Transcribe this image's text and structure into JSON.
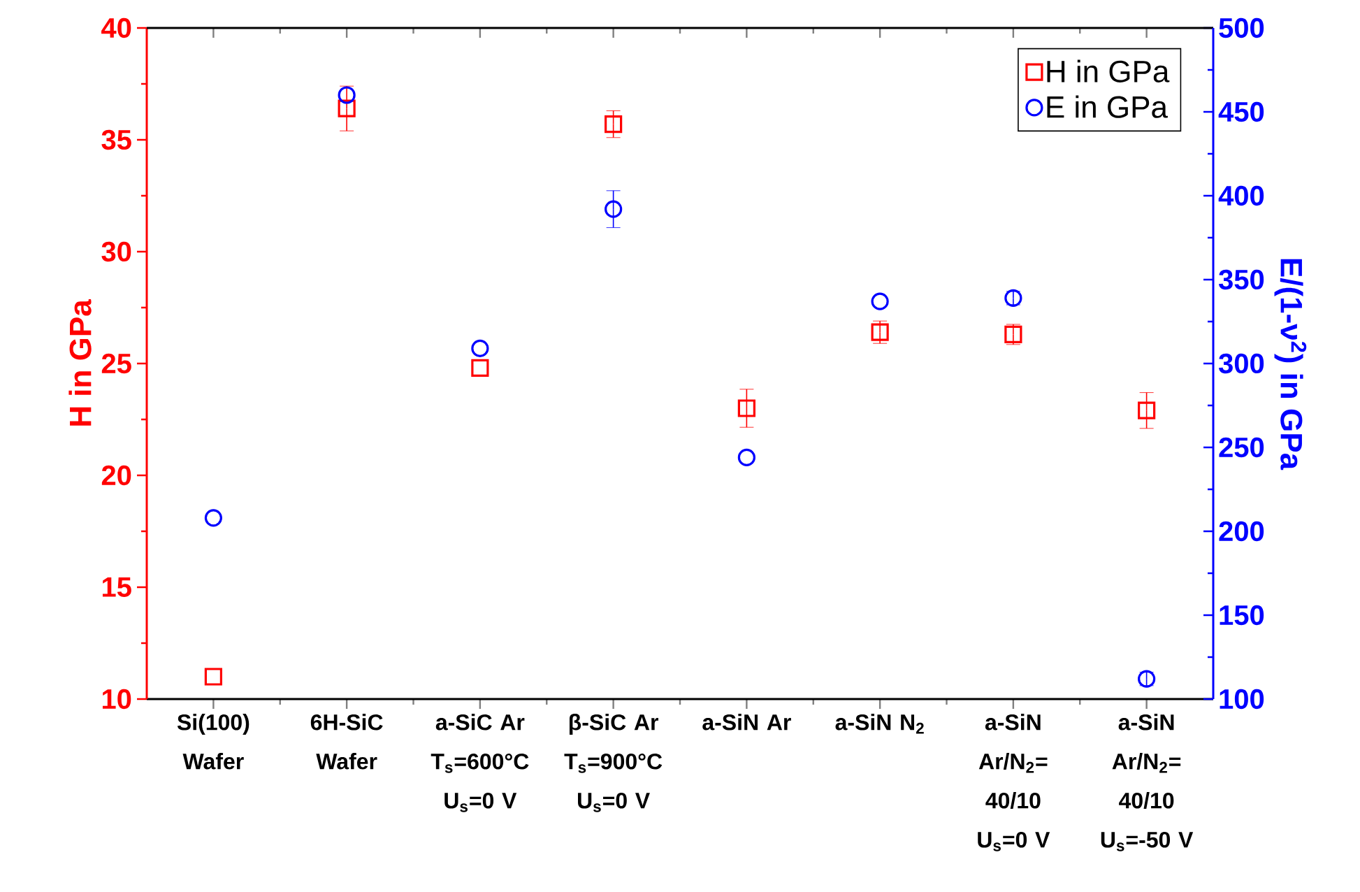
{
  "chart_data": {
    "type": "scatter",
    "categories": [
      "Si(100) Wafer",
      "6H-SiC Wafer",
      "a-SiC Ar T$_{s}$=600°C U$_{s}$=0 V",
      "β-SiC Ar T$_{s}$=900°C U$_{s}$=0 V",
      "a-SiN Ar",
      "a-SiN N$_{2}$",
      "a-SiN Ar/N$_{2}$= 40/10 U$_{s}$=0 V",
      "a-SiN Ar/N$_{2}$= 40/10 U$_{s}$=-50 V"
    ],
    "ylabel": "H in GPa",
    "y2label": "E/(1-ν$^{2}$) in GPa",
    "ylim": [
      10,
      40
    ],
    "yticks": [
      10,
      15,
      20,
      25,
      30,
      35,
      40
    ],
    "y2lim": [
      100,
      500
    ],
    "y2ticks": [
      100,
      150,
      200,
      250,
      300,
      350,
      400,
      450,
      500
    ],
    "legend": "top right",
    "series": [
      {
        "name": "H in GPa",
        "color": "#ff0000",
        "marker": "square",
        "values": [
          11.0,
          36.4,
          24.8,
          35.7,
          23.0,
          26.4,
          26.3,
          22.9
        ],
        "errors": [
          null,
          1.0,
          null,
          0.6,
          0.85,
          0.5,
          0.45,
          0.8
        ]
      },
      {
        "name": "E in GPa",
        "color": "#0000ff",
        "marker": "circle",
        "axis": "y2",
        "values": [
          208,
          460,
          309,
          392,
          244,
          337,
          339,
          112
        ],
        "errors": [
          null,
          null,
          null,
          11,
          null,
          null,
          4,
          4
        ]
      }
    ]
  }
}
